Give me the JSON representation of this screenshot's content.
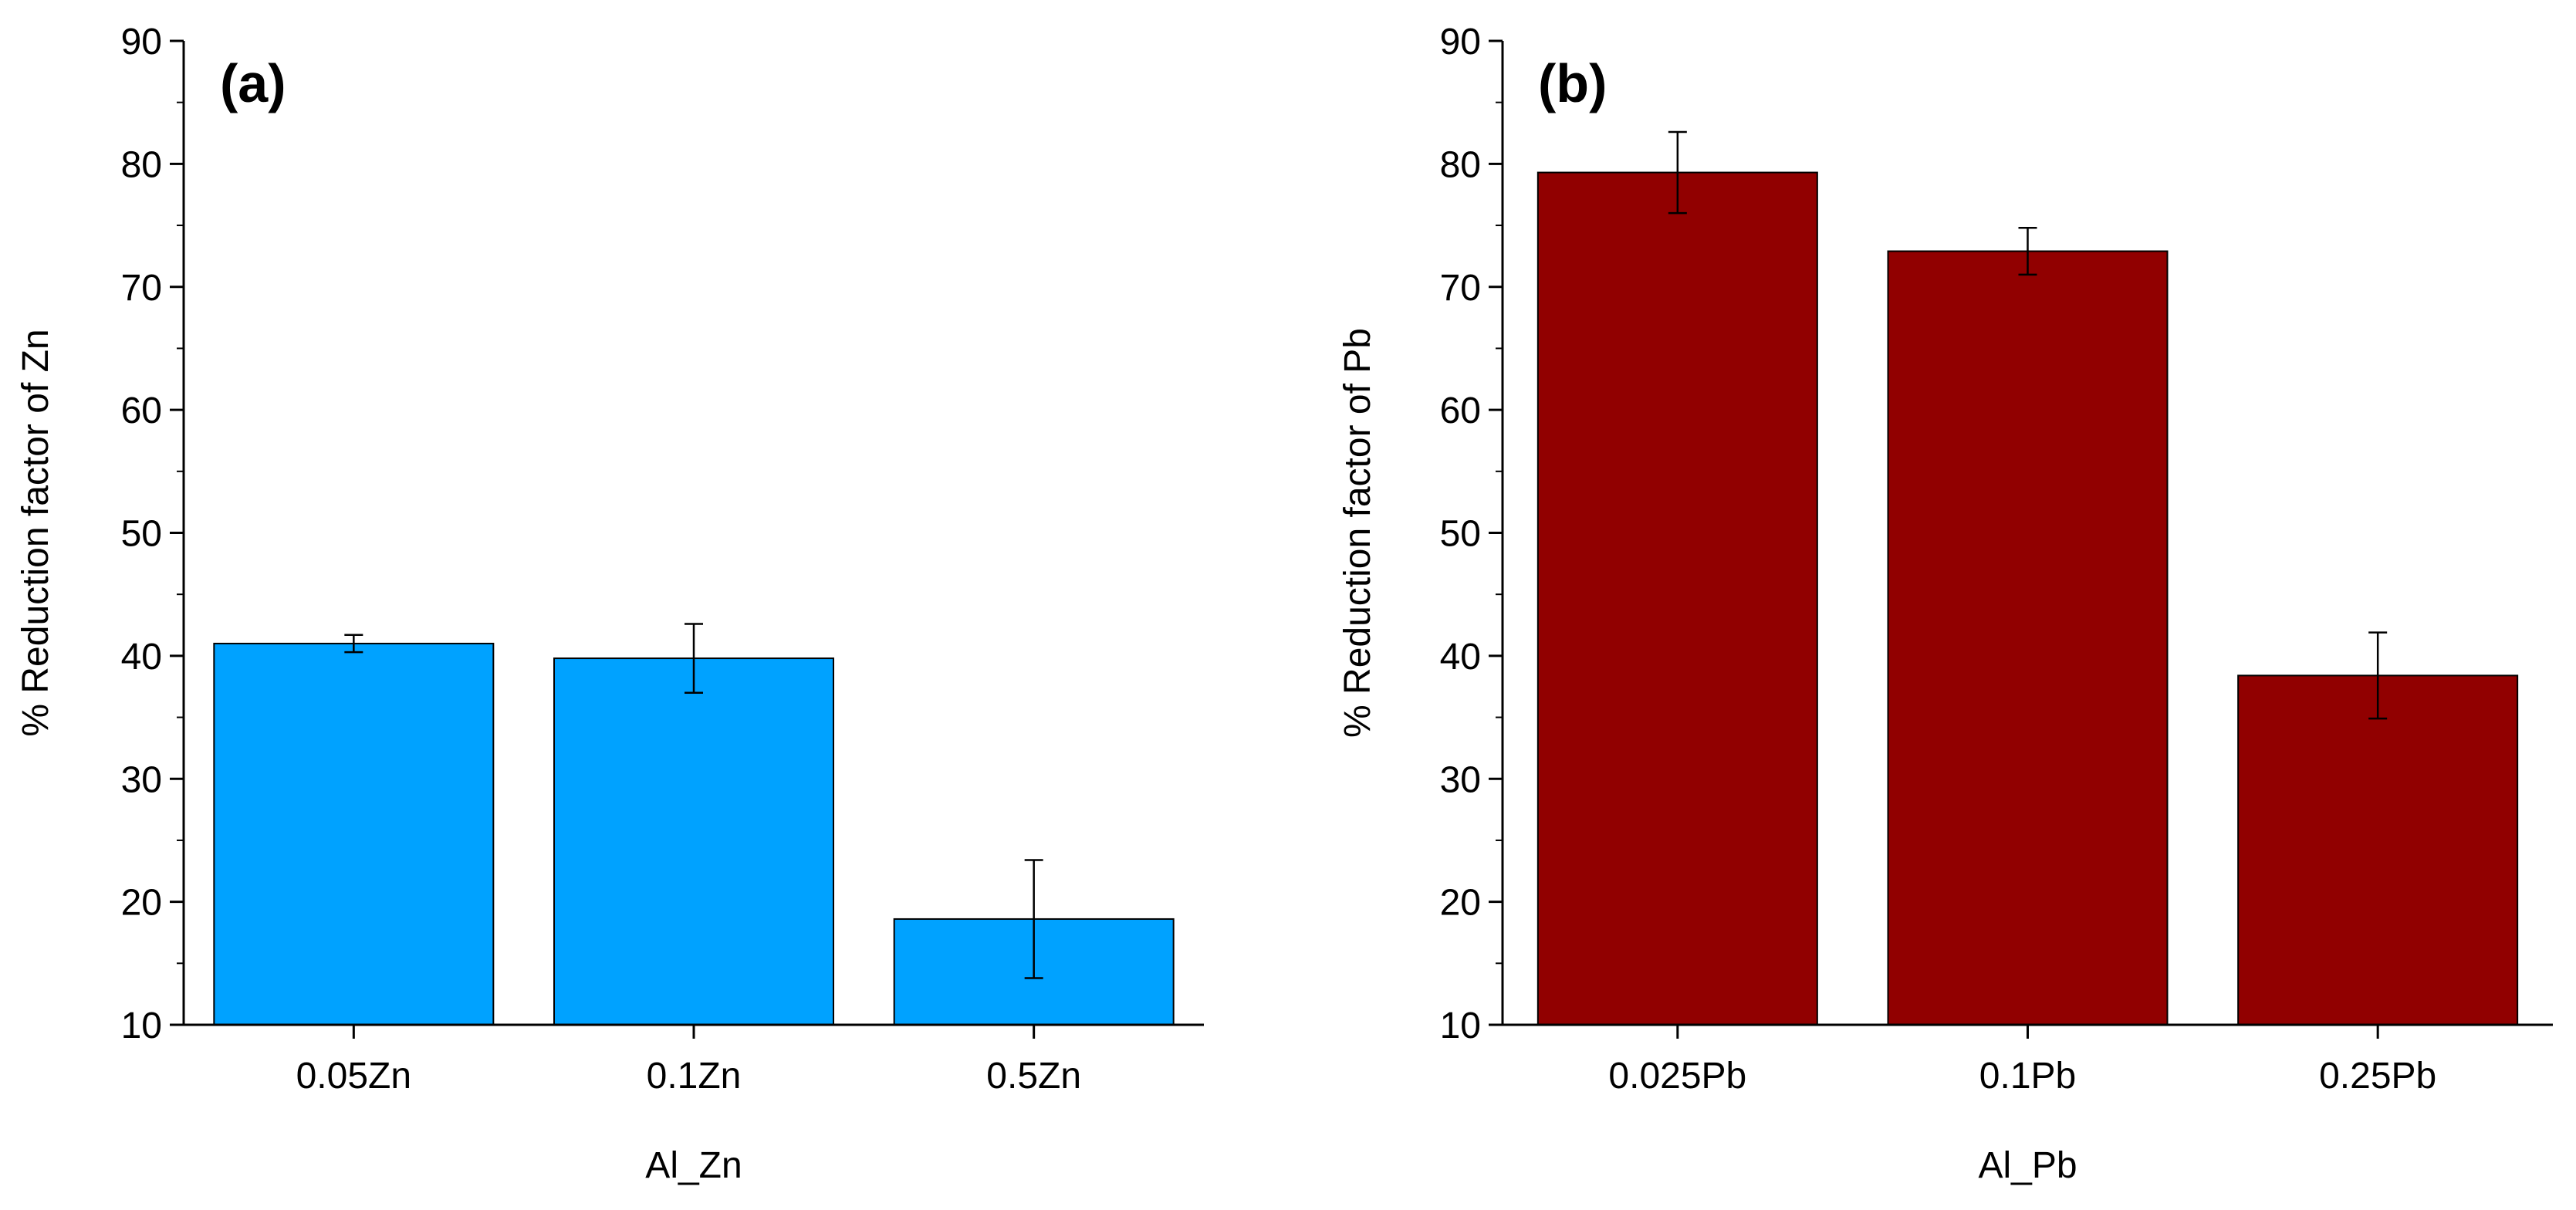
{
  "chart_data": [
    {
      "type": "bar",
      "panel_label": "(a)",
      "categories": [
        "0.05Zn",
        "0.1Zn",
        "0.5Zn"
      ],
      "values": [
        41.0,
        39.8,
        18.6
      ],
      "errors": [
        0.7,
        2.8,
        4.8
      ],
      "xlabel": "Al_Zn",
      "ylabel": "% Reduction factor of Zn",
      "ylim": [
        10,
        90
      ],
      "yticks": [
        10,
        20,
        30,
        40,
        50,
        60,
        70,
        80,
        90
      ],
      "color": "#00a2ff"
    },
    {
      "type": "bar",
      "panel_label": "(b)",
      "categories": [
        "0.025Pb",
        "0.1Pb",
        "0.25Pb"
      ],
      "values": [
        79.3,
        72.9,
        38.4
      ],
      "errors": [
        3.3,
        1.9,
        3.5
      ],
      "xlabel": "Al_Pb",
      "ylabel": "% Reduction factor of Pb",
      "ylim": [
        10,
        90
      ],
      "yticks": [
        10,
        20,
        30,
        40,
        50,
        60,
        70,
        80,
        90
      ],
      "color": "#910000"
    }
  ]
}
